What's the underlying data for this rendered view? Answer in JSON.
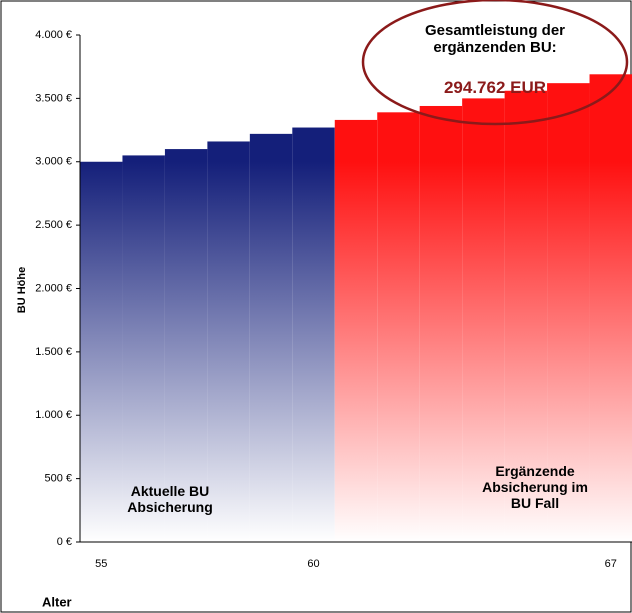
{
  "chart_data": {
    "type": "bar",
    "categories": [
      "55",
      null,
      null,
      null,
      null,
      "60",
      null,
      null,
      null,
      null,
      null,
      null,
      "67"
    ],
    "series": [
      {
        "name": "Aktuelle BU Absicherung",
        "color": "#141f7a",
        "values": [
          3000,
          3050,
          3100,
          3160,
          3220,
          3270,
          null,
          null,
          null,
          null,
          null,
          null,
          null
        ]
      },
      {
        "name": "Ergänzende Absicherung im BU Fall",
        "color": "#ff1010",
        "values": [
          null,
          null,
          null,
          null,
          null,
          null,
          3330,
          3390,
          3440,
          3500,
          3560,
          3620,
          3690
        ]
      }
    ],
    "ylim": [
      0,
      4000
    ],
    "yticks": [
      {
        "value": 0,
        "label": "0 €"
      },
      {
        "value": 500,
        "label": "500 €"
      },
      {
        "value": 1000,
        "label": "1.000 €"
      },
      {
        "value": 1500,
        "label": "1.500 €"
      },
      {
        "value": 2000,
        "label": "2.000 €"
      },
      {
        "value": 2500,
        "label": "2.500 €"
      },
      {
        "value": 3000,
        "label": "3.000 €"
      },
      {
        "value": 3500,
        "label": "3.500 €"
      },
      {
        "value": 4000,
        "label": "4.000 €"
      }
    ],
    "y_label": "BU Höhe",
    "x_label": "Alter",
    "annotation": {
      "text": "Gesamtleistung der ergänzenden BU:",
      "value": "294.762 EUR",
      "color": "#8b1a1a"
    }
  }
}
